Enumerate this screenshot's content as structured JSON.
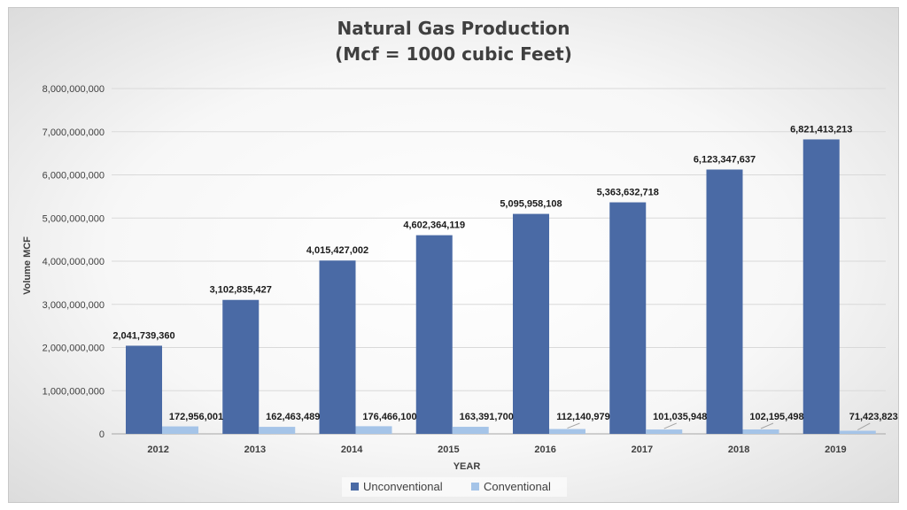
{
  "chart_data": {
    "type": "bar",
    "title_line1": "Natural Gas Production",
    "title_line2": "(Mcf = 1000 cubic Feet)",
    "xlabel": "YEAR",
    "ylabel": "Volume MCF",
    "ylim": [
      0,
      8000000000
    ],
    "ytick_step": 1000000000,
    "yticks": [
      "0",
      "1,000,000,000",
      "2,000,000,000",
      "3,000,000,000",
      "4,000,000,000",
      "5,000,000,000",
      "6,000,000,000",
      "7,000,000,000",
      "8,000,000,000"
    ],
    "grid": true,
    "legend_position": "bottom",
    "categories": [
      "2012",
      "2013",
      "2014",
      "2015",
      "2016",
      "2017",
      "2018",
      "2019"
    ],
    "series": [
      {
        "name": "Unconventional",
        "color": "#4a6aa5",
        "values": [
          2041739360,
          3102835427,
          4015427002,
          4602364119,
          5095958108,
          5363632718,
          6123347637,
          6821413213
        ],
        "labels": [
          "2,041,739,360",
          "3,102,835,427",
          "4,015,427,002",
          "4,602,364,119",
          "5,095,958,108",
          "5,363,632,718",
          "6,123,347,637",
          "6,821,413,213"
        ]
      },
      {
        "name": "Conventional",
        "color": "#a5c4e8",
        "values": [
          172956001,
          162463489,
          176466100,
          163391700,
          112140979,
          101035948,
          102195498,
          71423823
        ],
        "labels": [
          "172,956,001",
          "162,463,489",
          "176,466,100",
          "163,391,700",
          "112,140,979",
          "101,035,948",
          "102,195,498",
          "71,423,823"
        ]
      }
    ]
  }
}
